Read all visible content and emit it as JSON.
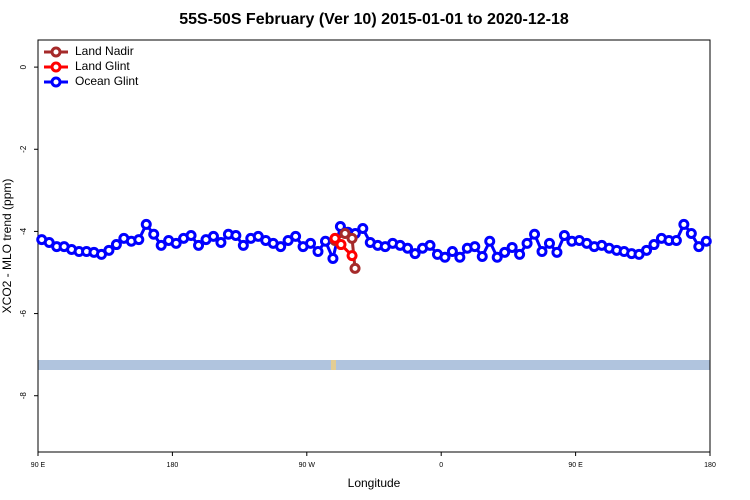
{
  "chart_data": {
    "type": "line",
    "title": "55S-50S February (Ver 10)   2015-01-01 to 2020-12-18",
    "xlabel": "Longitude",
    "ylabel": "XCO2 - MLO trend (ppm)",
    "xlim": [
      90,
      540
    ],
    "ylim": [
      -9.37,
      0.66
    ],
    "xticks": [
      {
        "value": 90,
        "label": "90 E"
      },
      180,
      {
        "value": 270,
        "label": "90 W"
      },
      {
        "value": 360,
        "label": "0"
      },
      {
        "value": 450,
        "label": "90 E"
      },
      {
        "value": 540,
        "label": "180"
      }
    ],
    "yticks": [
      0,
      -2,
      -4,
      -6,
      -8
    ],
    "legend": "top-left",
    "series": [
      {
        "name": "Land Nadir",
        "color": "#a52a2a",
        "x": [
          288.9,
          295.6,
          300.3,
          302.3
        ],
        "values": [
          -4.22,
          -4.05,
          -4.17,
          -4.9
        ]
      },
      {
        "name": "Land Glint",
        "color": "#ff0000",
        "x": [
          288.9,
          292.9,
          300.3
        ],
        "values": [
          -4.17,
          -4.32,
          -4.59
        ]
      },
      {
        "name": "Ocean Glint",
        "color": "#0000ff",
        "x": [
          92.5,
          97.5,
          102.5,
          107.5,
          112.5,
          117.5,
          122.5,
          127.5,
          132.5,
          137.5,
          142.5,
          147.5,
          152.5,
          157.5,
          162.5,
          167.5,
          172.5,
          177.5,
          182.5,
          187.5,
          192.5,
          197.5,
          202.5,
          207.5,
          212.5,
          217.5,
          222.5,
          227.5,
          232.5,
          237.5,
          242.5,
          247.5,
          252.5,
          257.5,
          262.5,
          267.5,
          272.5,
          277.5,
          282.5,
          287.5,
          292.5,
          297.5,
          302.5,
          307.5,
          312.5,
          317.5,
          322.5,
          327.5,
          332.5,
          337.5,
          342.5,
          347.5,
          352.5,
          357.5,
          362.5,
          367.5,
          372.5,
          377.5,
          382.5,
          387.5,
          392.5,
          397.5,
          402.5,
          407.5,
          412.5,
          417.5,
          422.5,
          427.5,
          432.5,
          437.5,
          442.5,
          447.5,
          452.5,
          457.5,
          462.5,
          467.5,
          472.5,
          477.5,
          482.5,
          487.5,
          492.5,
          497.5,
          502.5,
          507.5,
          512.5,
          517.5,
          522.5,
          527.5,
          532.5,
          537.5
        ],
        "values": [
          -4.2,
          -4.27,
          -4.37,
          -4.37,
          -4.44,
          -4.49,
          -4.49,
          -4.51,
          -4.56,
          -4.46,
          -4.32,
          -4.17,
          -4.24,
          -4.2,
          -3.83,
          -4.07,
          -4.34,
          -4.22,
          -4.29,
          -4.17,
          -4.1,
          -4.34,
          -4.2,
          -4.12,
          -4.27,
          -4.07,
          -4.1,
          -4.34,
          -4.17,
          -4.12,
          -4.22,
          -4.29,
          -4.37,
          -4.22,
          -4.12,
          -4.37,
          -4.29,
          -4.49,
          -4.24,
          -4.66,
          -3.88,
          -4.02,
          -4.05,
          -3.93,
          -4.27,
          -4.34,
          -4.37,
          -4.29,
          -4.34,
          -4.41,
          -4.54,
          -4.41,
          -4.34,
          -4.56,
          -4.63,
          -4.49,
          -4.63,
          -4.41,
          -4.37,
          -4.61,
          -4.24,
          -4.63,
          -4.51,
          -4.39,
          -4.56,
          -4.29,
          -4.07,
          -4.49,
          -4.29,
          -4.51,
          -4.1,
          -4.24,
          -4.22,
          -4.29,
          -4.37,
          -4.34,
          -4.41,
          -4.46,
          -4.49,
          -4.54,
          -4.56,
          -4.46,
          -4.32,
          -4.17,
          -4.22,
          -4.22,
          -3.83,
          -4.05,
          -4.37,
          -4.24
        ]
      }
    ]
  }
}
